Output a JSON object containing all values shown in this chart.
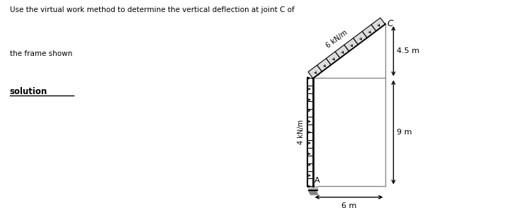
{
  "title_line1": "Use the virtual work method to determine the vertical deflection at joint C of",
  "title_line2": "the frame shown",
  "solution_label": "solution",
  "A": [
    0,
    0
  ],
  "B": [
    0,
    9
  ],
  "C": [
    6,
    13.5
  ],
  "dim_6m": "6 m",
  "dim_4_5m": "4.5 m",
  "dim_9m": "9 m",
  "load_AB": "4 kN/m",
  "load_BC": "6 kN/m",
  "background": "#ffffff"
}
